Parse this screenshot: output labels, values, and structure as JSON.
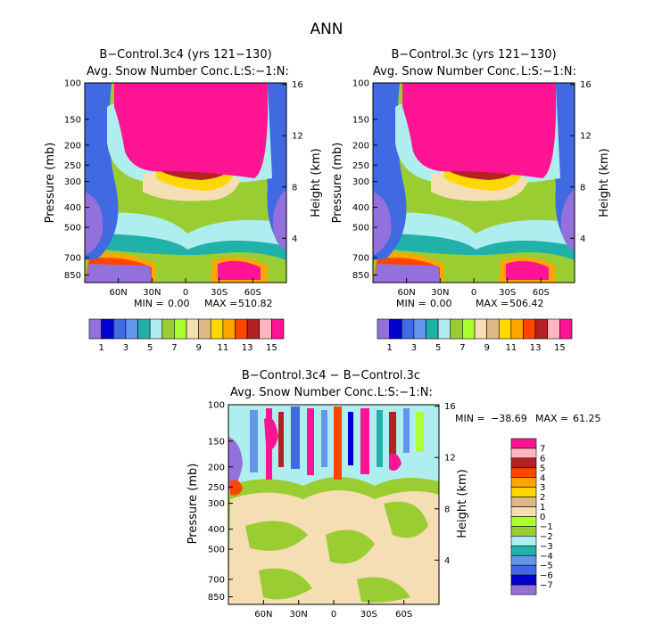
{
  "page": {
    "title": "ANN"
  },
  "colors": {
    "palette": [
      "#9370DB",
      "#0000CD",
      "#4169E1",
      "#6495ED",
      "#20B2AA",
      "#AFEEEE",
      "#9ACD32",
      "#ADFF2F",
      "#F5DEB3",
      "#DEB887",
      "#FFD700",
      "#FFA500",
      "#FF4500",
      "#B22222",
      "#FFB6C1",
      "#FF1493"
    ]
  },
  "chart_data": [
    {
      "type": "heatmap",
      "title": "B−Control.3c4 (yrs 121−130)",
      "subtitle": "Avg. Snow Number Conc.",
      "units": "L:S:−1:N:",
      "ylabel": "Pressure (mb)",
      "ylabel_right": "Height (km)",
      "y_ticks": [
        "100",
        "150",
        "200",
        "250",
        "300",
        "400",
        "500",
        "700",
        "850"
      ],
      "y_right_ticks": [
        "16",
        "12",
        "8",
        "4"
      ],
      "x_ticks": [
        "60N",
        "30N",
        "0",
        "30S",
        "60S"
      ],
      "stats": {
        "min_label": "MIN =",
        "min": "0.00",
        "max_label": "MAX =",
        "max": "510.82"
      },
      "colorbar_labels": [
        "1",
        "3",
        "5",
        "7",
        "9",
        "11",
        "13",
        "15"
      ],
      "colorbar_levels": 16
    },
    {
      "type": "heatmap",
      "title": "B−Control.3c (yrs 121−130)",
      "subtitle": "Avg. Snow Number Conc.",
      "units": "L:S:−1:N:",
      "ylabel": "Pressure (mb)",
      "ylabel_right": "Height (km)",
      "y_ticks": [
        "100",
        "150",
        "200",
        "250",
        "300",
        "400",
        "500",
        "700",
        "850"
      ],
      "y_right_ticks": [
        "16",
        "12",
        "8",
        "4"
      ],
      "x_ticks": [
        "60N",
        "30N",
        "0",
        "30S",
        "60S"
      ],
      "stats": {
        "min_label": "MIN =",
        "min": "0.00",
        "max_label": "MAX =",
        "max": "506.42"
      },
      "colorbar_labels": [
        "1",
        "3",
        "5",
        "7",
        "9",
        "11",
        "13",
        "15"
      ],
      "colorbar_levels": 16
    },
    {
      "type": "heatmap",
      "title": "B−Control.3c4 − B−Control.3c",
      "subtitle": "Avg. Snow Number Conc.",
      "units": "L:S:−1:N:",
      "ylabel": "Pressure (mb)",
      "ylabel_right": "Height (km)",
      "y_ticks": [
        "100",
        "150",
        "200",
        "250",
        "300",
        "400",
        "500",
        "700",
        "850"
      ],
      "y_right_ticks": [
        "16",
        "12",
        "8",
        "4"
      ],
      "x_ticks": [
        "60N",
        "30N",
        "0",
        "30S",
        "60S"
      ],
      "stats": {
        "min_label": "MIN =",
        "min": "−38.69",
        "max_label": "MAX =",
        "max": "61.25"
      },
      "colorbar_labels": [
        "7",
        "6",
        "5",
        "4",
        "3",
        "2",
        "1",
        "0",
        "−1",
        "−2",
        "−3",
        "−4",
        "−5",
        "−6",
        "−7"
      ],
      "colorbar_levels": 16
    }
  ]
}
